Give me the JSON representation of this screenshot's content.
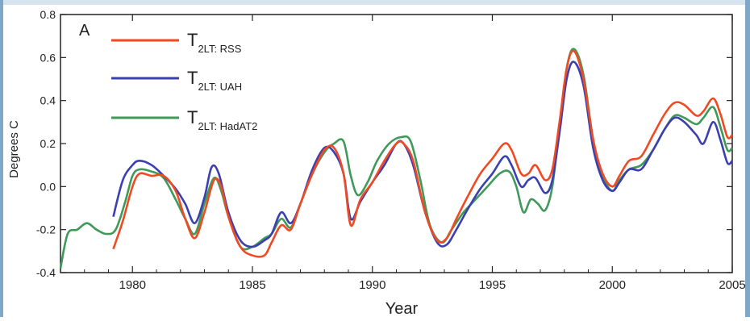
{
  "chart_data": {
    "type": "line",
    "panel_label": "A",
    "xlabel": "Year",
    "ylabel": "Degrees C",
    "xlim": [
      1977.0,
      2005.0
    ],
    "ylim": [
      -0.4,
      0.8
    ],
    "x_ticks": [
      1980,
      1985,
      1990,
      1995,
      2000,
      2005
    ],
    "y_ticks": [
      -0.4,
      -0.2,
      0.0,
      0.2,
      0.4,
      0.6,
      0.8
    ],
    "y_tick_labels": [
      "-0.4",
      "-0.2",
      "0.0",
      "0.2",
      "0.4",
      "0.6",
      "0.8"
    ],
    "x_tick_labels": [
      "1980",
      "1985",
      "1990",
      "1995",
      "2000",
      "2005"
    ],
    "grid": false,
    "legend_placement": "top-left",
    "series": [
      {
        "name_main": "T",
        "name_sub": "2LT: RSS",
        "color": "#f04a23",
        "points": [
          [
            1979.2,
            -0.29
          ],
          [
            1979.6,
            -0.16
          ],
          [
            1980.0,
            0.0
          ],
          [
            1980.3,
            0.06
          ],
          [
            1980.8,
            0.05
          ],
          [
            1981.3,
            0.05
          ],
          [
            1981.8,
            -0.02
          ],
          [
            1982.2,
            -0.15
          ],
          [
            1982.6,
            -0.24
          ],
          [
            1983.0,
            -0.12
          ],
          [
            1983.4,
            0.03
          ],
          [
            1983.7,
            0.0
          ],
          [
            1984.0,
            -0.14
          ],
          [
            1984.5,
            -0.28
          ],
          [
            1985.0,
            -0.32
          ],
          [
            1985.5,
            -0.32
          ],
          [
            1985.8,
            -0.26
          ],
          [
            1986.2,
            -0.18
          ],
          [
            1986.6,
            -0.2
          ],
          [
            1987.0,
            -0.08
          ],
          [
            1987.5,
            0.06
          ],
          [
            1988.0,
            0.17
          ],
          [
            1988.4,
            0.18
          ],
          [
            1988.8,
            0.06
          ],
          [
            1989.1,
            -0.18
          ],
          [
            1989.5,
            -0.06
          ],
          [
            1990.0,
            0.02
          ],
          [
            1990.5,
            0.12
          ],
          [
            1991.0,
            0.2
          ],
          [
            1991.3,
            0.2
          ],
          [
            1991.7,
            0.12
          ],
          [
            1992.2,
            -0.12
          ],
          [
            1992.7,
            -0.25
          ],
          [
            1993.1,
            -0.24
          ],
          [
            1993.5,
            -0.15
          ],
          [
            1994.0,
            -0.04
          ],
          [
            1994.5,
            0.06
          ],
          [
            1995.0,
            0.13
          ],
          [
            1995.5,
            0.2
          ],
          [
            1995.8,
            0.17
          ],
          [
            1996.2,
            0.06
          ],
          [
            1996.5,
            0.06
          ],
          [
            1996.8,
            0.1
          ],
          [
            1997.2,
            0.03
          ],
          [
            1997.5,
            0.08
          ],
          [
            1997.8,
            0.3
          ],
          [
            1998.1,
            0.55
          ],
          [
            1998.4,
            0.63
          ],
          [
            1998.8,
            0.5
          ],
          [
            1999.2,
            0.22
          ],
          [
            1999.6,
            0.06
          ],
          [
            2000.0,
            0.0
          ],
          [
            2000.3,
            0.05
          ],
          [
            2000.7,
            0.12
          ],
          [
            2001.2,
            0.14
          ],
          [
            2001.7,
            0.24
          ],
          [
            2002.2,
            0.34
          ],
          [
            2002.6,
            0.39
          ],
          [
            2003.0,
            0.38
          ],
          [
            2003.5,
            0.33
          ],
          [
            2003.8,
            0.35
          ],
          [
            2004.2,
            0.41
          ],
          [
            2004.5,
            0.34
          ],
          [
            2004.8,
            0.23
          ],
          [
            2005.0,
            0.24
          ]
        ]
      },
      {
        "name_main": "T",
        "name_sub": "2LT: UAH",
        "color": "#3b3fb0",
        "points": [
          [
            1979.2,
            -0.14
          ],
          [
            1979.6,
            0.03
          ],
          [
            1980.0,
            0.1
          ],
          [
            1980.3,
            0.12
          ],
          [
            1980.8,
            0.1
          ],
          [
            1981.3,
            0.05
          ],
          [
            1981.8,
            -0.01
          ],
          [
            1982.2,
            -0.08
          ],
          [
            1982.6,
            -0.17
          ],
          [
            1983.0,
            -0.05
          ],
          [
            1983.3,
            0.09
          ],
          [
            1983.6,
            0.06
          ],
          [
            1984.0,
            -0.12
          ],
          [
            1984.5,
            -0.25
          ],
          [
            1985.0,
            -0.28
          ],
          [
            1985.5,
            -0.25
          ],
          [
            1985.8,
            -0.22
          ],
          [
            1986.2,
            -0.12
          ],
          [
            1986.6,
            -0.17
          ],
          [
            1987.0,
            -0.08
          ],
          [
            1987.5,
            0.08
          ],
          [
            1988.0,
            0.18
          ],
          [
            1988.4,
            0.16
          ],
          [
            1988.8,
            0.06
          ],
          [
            1989.1,
            -0.15
          ],
          [
            1989.5,
            -0.07
          ],
          [
            1990.0,
            0.02
          ],
          [
            1990.5,
            0.1
          ],
          [
            1991.0,
            0.2
          ],
          [
            1991.3,
            0.2
          ],
          [
            1991.7,
            0.1
          ],
          [
            1992.2,
            -0.12
          ],
          [
            1992.7,
            -0.26
          ],
          [
            1993.1,
            -0.27
          ],
          [
            1993.5,
            -0.2
          ],
          [
            1994.0,
            -0.1
          ],
          [
            1994.5,
            -0.01
          ],
          [
            1995.0,
            0.06
          ],
          [
            1995.5,
            0.14
          ],
          [
            1995.8,
            0.1
          ],
          [
            1996.2,
            0.0
          ],
          [
            1996.5,
            0.03
          ],
          [
            1996.8,
            0.04
          ],
          [
            1997.2,
            -0.03
          ],
          [
            1997.5,
            0.03
          ],
          [
            1997.8,
            0.25
          ],
          [
            1998.1,
            0.5
          ],
          [
            1998.4,
            0.58
          ],
          [
            1998.8,
            0.47
          ],
          [
            1999.2,
            0.18
          ],
          [
            1999.6,
            0.03
          ],
          [
            2000.0,
            -0.02
          ],
          [
            2000.3,
            0.02
          ],
          [
            2000.7,
            0.08
          ],
          [
            2001.2,
            0.08
          ],
          [
            2001.7,
            0.17
          ],
          [
            2002.2,
            0.27
          ],
          [
            2002.6,
            0.32
          ],
          [
            2003.0,
            0.3
          ],
          [
            2003.5,
            0.24
          ],
          [
            2003.8,
            0.2
          ],
          [
            2004.2,
            0.3
          ],
          [
            2004.5,
            0.22
          ],
          [
            2004.8,
            0.11
          ],
          [
            2005.0,
            0.12
          ]
        ]
      },
      {
        "name_main": "T",
        "name_sub": "2LT: HadAT2",
        "color": "#3f9a5a",
        "points": [
          [
            1977.0,
            -0.38
          ],
          [
            1977.3,
            -0.22
          ],
          [
            1977.7,
            -0.2
          ],
          [
            1978.1,
            -0.17
          ],
          [
            1978.5,
            -0.2
          ],
          [
            1978.9,
            -0.22
          ],
          [
            1979.3,
            -0.2
          ],
          [
            1979.7,
            -0.07
          ],
          [
            1980.0,
            0.05
          ],
          [
            1980.3,
            0.08
          ],
          [
            1980.8,
            0.07
          ],
          [
            1981.3,
            0.04
          ],
          [
            1981.8,
            -0.06
          ],
          [
            1982.2,
            -0.15
          ],
          [
            1982.6,
            -0.22
          ],
          [
            1983.0,
            -0.08
          ],
          [
            1983.4,
            0.04
          ],
          [
            1983.7,
            -0.02
          ],
          [
            1984.0,
            -0.14
          ],
          [
            1984.5,
            -0.28
          ],
          [
            1985.0,
            -0.28
          ],
          [
            1985.5,
            -0.24
          ],
          [
            1985.8,
            -0.22
          ],
          [
            1986.2,
            -0.15
          ],
          [
            1986.6,
            -0.19
          ],
          [
            1987.0,
            -0.08
          ],
          [
            1987.5,
            0.06
          ],
          [
            1988.0,
            0.16
          ],
          [
            1988.4,
            0.2
          ],
          [
            1988.8,
            0.21
          ],
          [
            1989.1,
            0.05
          ],
          [
            1989.4,
            -0.04
          ],
          [
            1989.8,
            0.02
          ],
          [
            1990.2,
            0.12
          ],
          [
            1990.7,
            0.2
          ],
          [
            1991.2,
            0.23
          ],
          [
            1991.6,
            0.21
          ],
          [
            1992.0,
            0.03
          ],
          [
            1992.4,
            -0.18
          ],
          [
            1992.9,
            -0.26
          ],
          [
            1993.3,
            -0.2
          ],
          [
            1993.8,
            -0.12
          ],
          [
            1994.3,
            -0.06
          ],
          [
            1994.8,
            0.0
          ],
          [
            1995.3,
            0.06
          ],
          [
            1995.7,
            0.07
          ],
          [
            1996.0,
            0.0
          ],
          [
            1996.3,
            -0.12
          ],
          [
            1996.6,
            -0.06
          ],
          [
            1996.9,
            -0.08
          ],
          [
            1997.2,
            -0.11
          ],
          [
            1997.5,
            0.0
          ],
          [
            1997.8,
            0.28
          ],
          [
            1998.1,
            0.55
          ],
          [
            1998.4,
            0.64
          ],
          [
            1998.8,
            0.52
          ],
          [
            1999.2,
            0.22
          ],
          [
            1999.6,
            0.05
          ],
          [
            2000.0,
            -0.02
          ],
          [
            2000.3,
            0.03
          ],
          [
            2000.7,
            0.08
          ],
          [
            2001.2,
            0.1
          ],
          [
            2001.7,
            0.17
          ],
          [
            2002.2,
            0.27
          ],
          [
            2002.6,
            0.33
          ],
          [
            2003.0,
            0.32
          ],
          [
            2003.5,
            0.29
          ],
          [
            2003.8,
            0.32
          ],
          [
            2004.2,
            0.37
          ],
          [
            2004.5,
            0.28
          ],
          [
            2004.8,
            0.17
          ],
          [
            2005.0,
            0.18
          ]
        ]
      }
    ]
  }
}
